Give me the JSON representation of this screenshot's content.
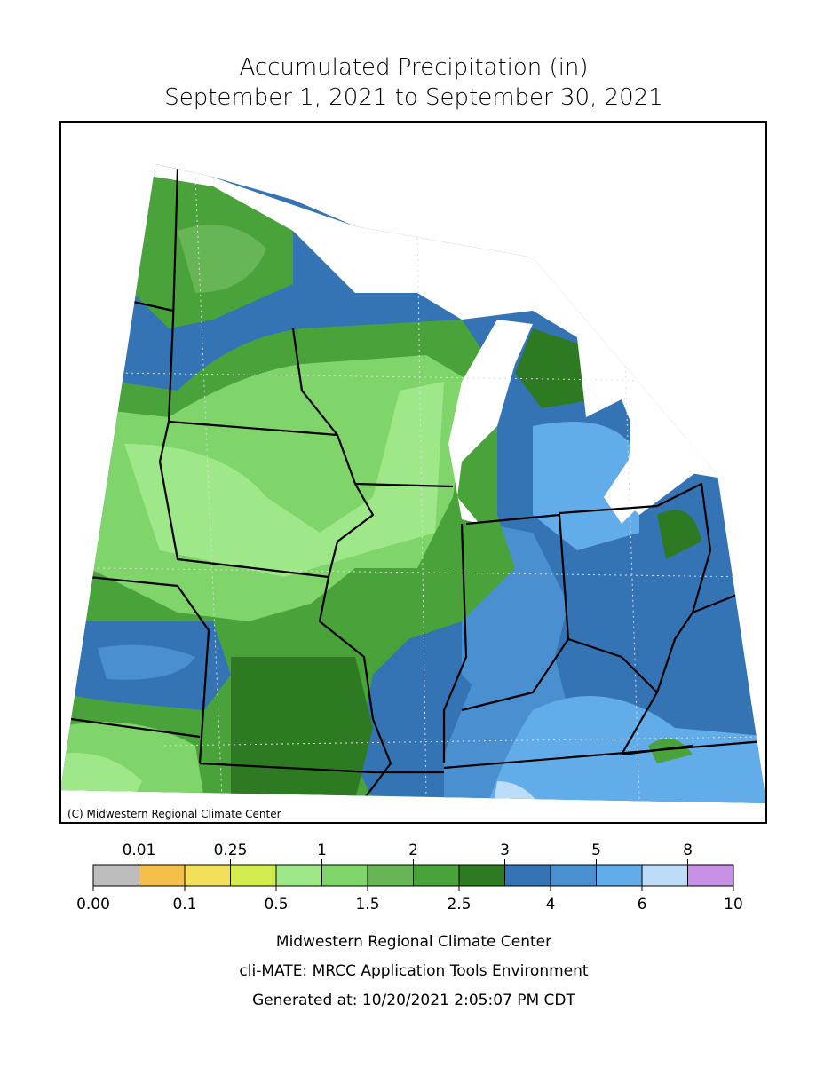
{
  "header": {
    "title": "Accumulated Precipitation (in)",
    "subtitle": "September 1, 2021 to September 30, 2021"
  },
  "map": {
    "copyright": "(C) Midwestern Regional Climate Center"
  },
  "legend": {
    "boundaries": [
      "0.00",
      "0.01",
      "0.1",
      "0.25",
      "0.5",
      "1",
      "1.5",
      "2",
      "2.5",
      "3",
      "4",
      "5",
      "6",
      "8",
      "10"
    ],
    "colors": [
      "#bdbdbd",
      "#f5c04a",
      "#f2e05a",
      "#d2ec50",
      "#9ee88a",
      "#7fd46a",
      "#67b555",
      "#4aa23a",
      "#2e7a22",
      "#3474b4",
      "#4a90d0",
      "#62acea",
      "#bcdcf7",
      "#c890e4"
    ]
  },
  "footer": {
    "lines": [
      "Midwestern Regional Climate Center",
      "cli-MATE: MRCC Application Tools Environment",
      "Generated at: 10/20/2021 2:05:07 PM CDT"
    ]
  }
}
